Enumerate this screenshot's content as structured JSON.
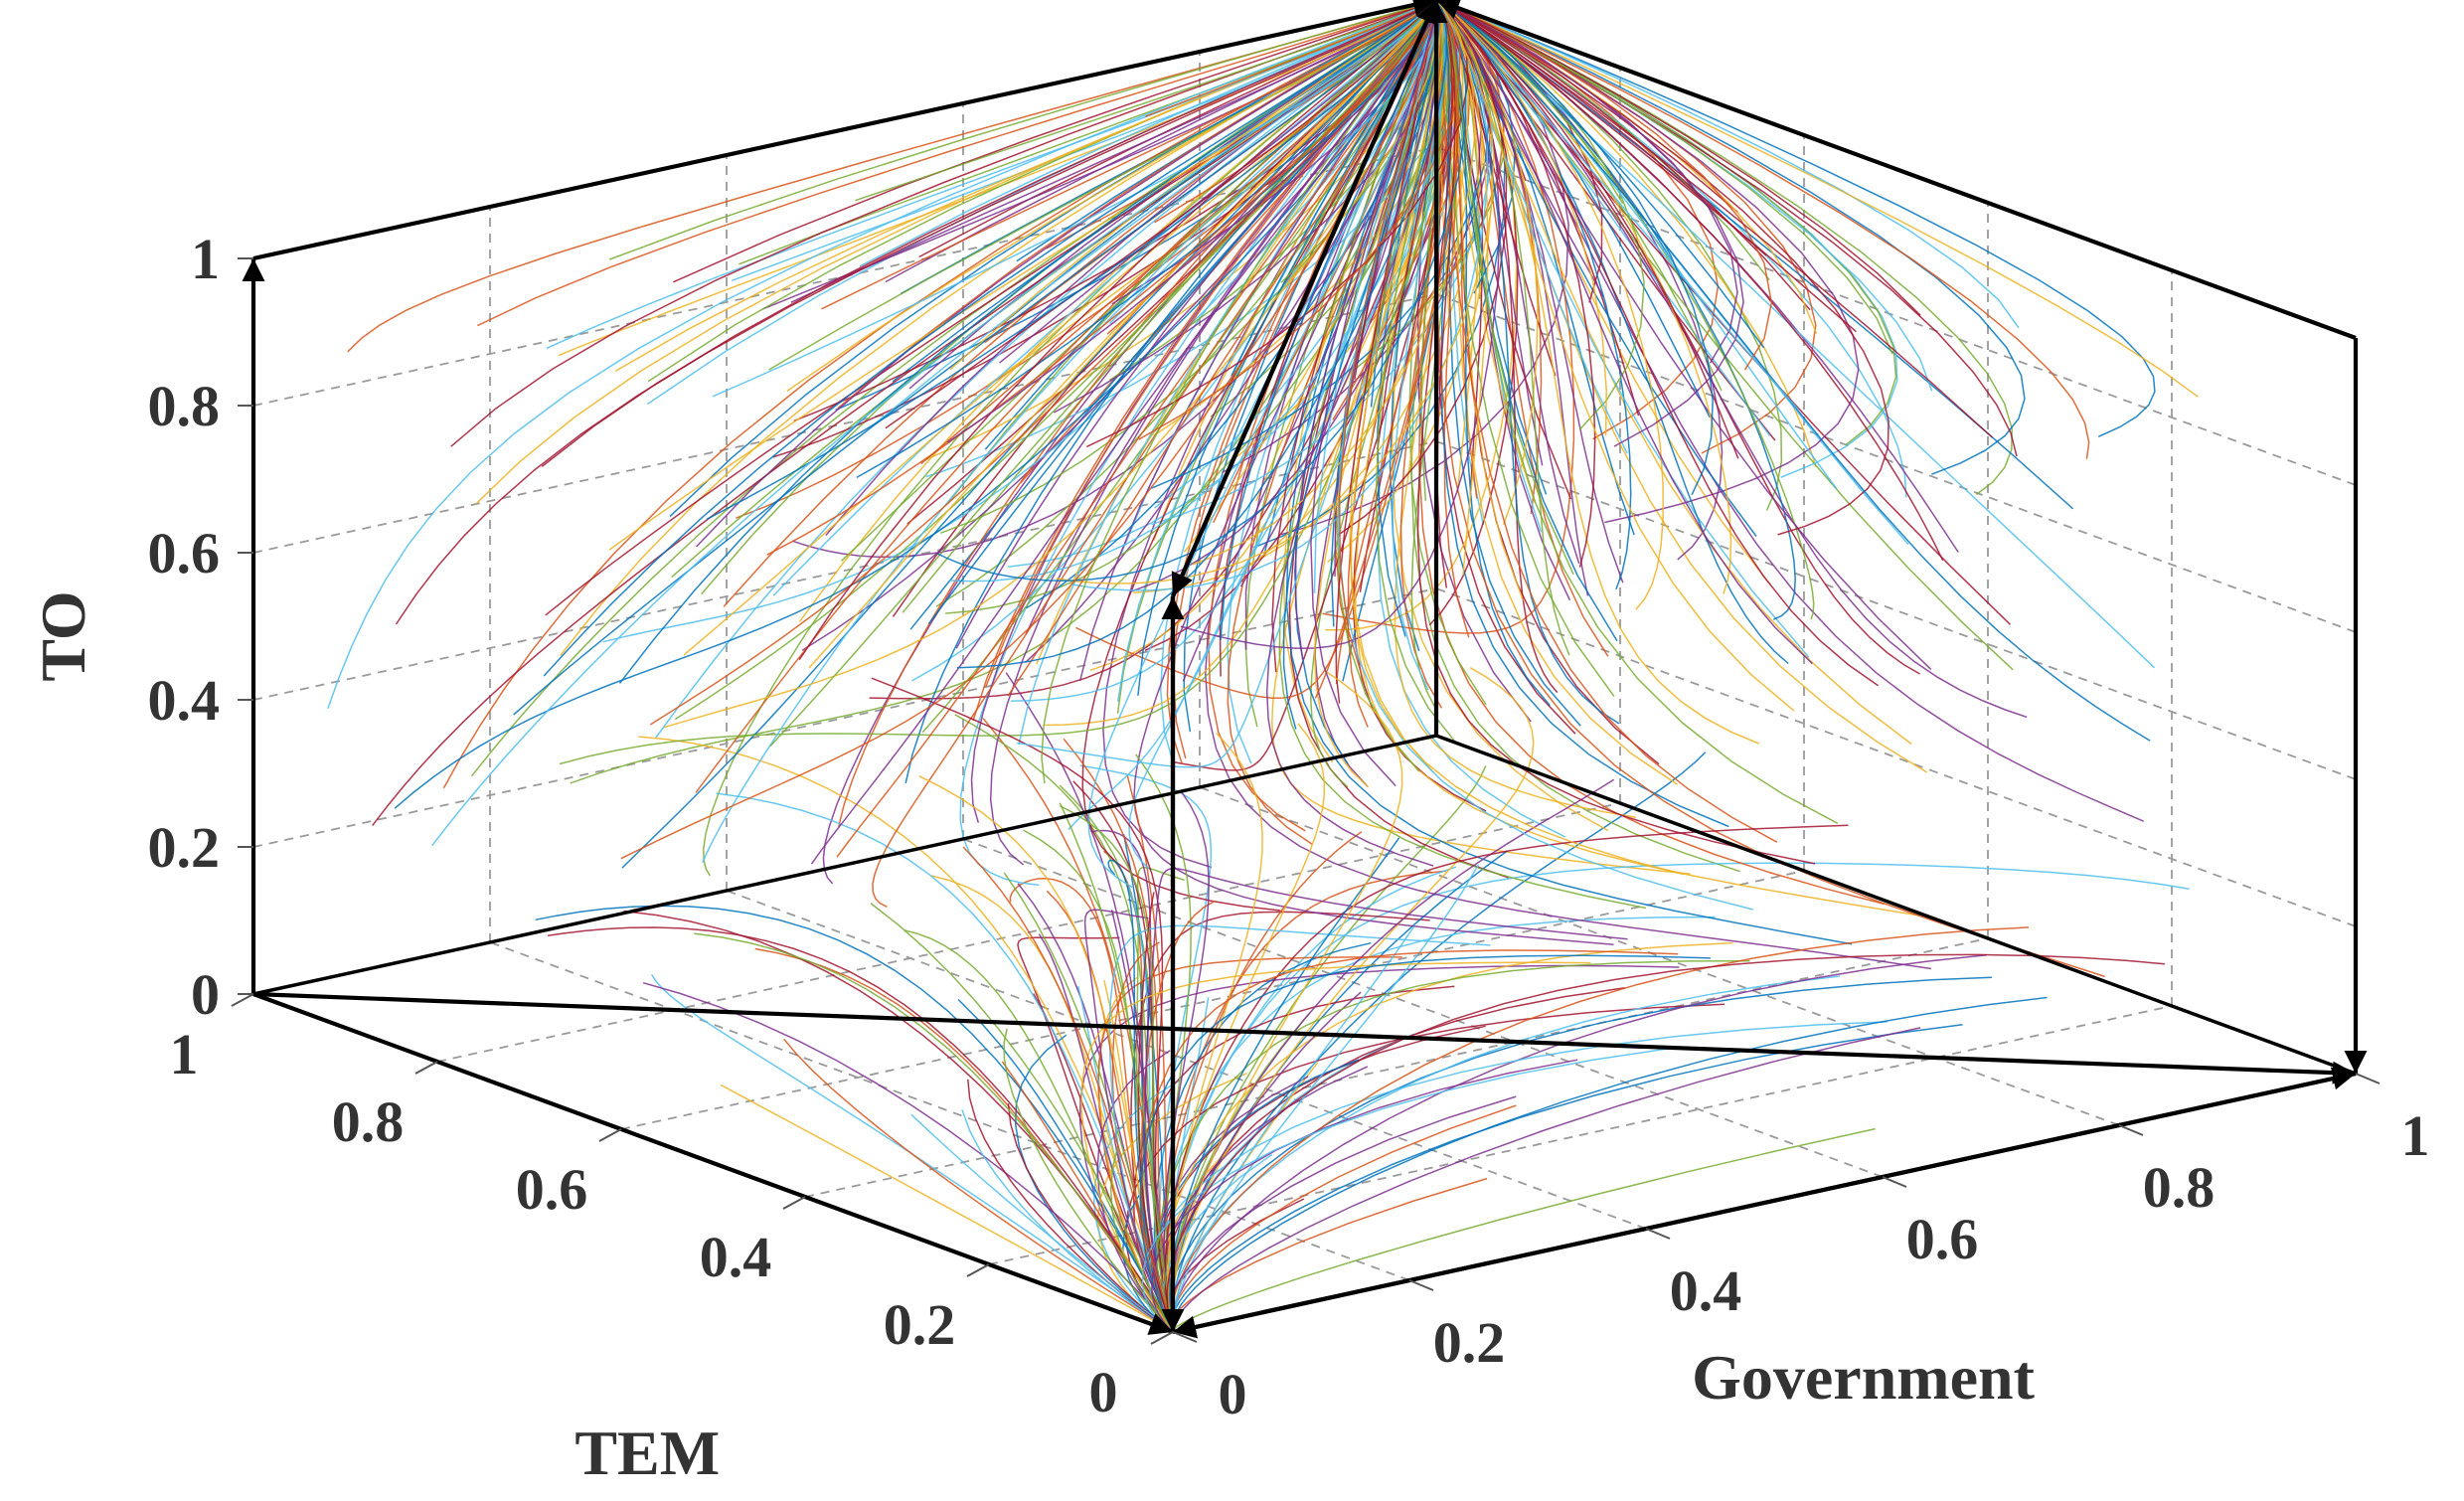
{
  "chart_data": {
    "type": "line",
    "subtype": "3d-phase-portrait",
    "title": "",
    "xlabel": "Government",
    "ylabel": "TEM",
    "zlabel": "TO",
    "xlim": [
      0,
      1
    ],
    "ylim": [
      0,
      1
    ],
    "zlim": [
      0,
      1
    ],
    "x_ticks": [
      "0",
      "0.2",
      "0.4",
      "0.6",
      "0.8",
      "1"
    ],
    "y_ticks": [
      "0",
      "0.2",
      "0.4",
      "0.6",
      "0.8",
      "1"
    ],
    "z_ticks": [
      "0",
      "0.2",
      "0.4",
      "0.6",
      "0.8",
      "1"
    ],
    "grid": true,
    "legend": "none",
    "trajectory_count": 500,
    "trajectory_colors": [
      "#0072BD",
      "#D95319",
      "#EDB120",
      "#7E2F8E",
      "#77AC30",
      "#4DBEEE",
      "#A2142F"
    ],
    "stable_points": [
      [
        1,
        1,
        1
      ]
    ],
    "pure_strategy_flows": [
      {
        "from": [
          0,
          0,
          0
        ],
        "to": [
          1,
          0,
          0
        ]
      },
      {
        "from": [
          1,
          0,
          0
        ],
        "to": [
          0,
          0,
          0
        ]
      },
      {
        "from": [
          0,
          1,
          0
        ],
        "to": [
          0,
          0,
          0
        ]
      },
      {
        "from": [
          0,
          0,
          1
        ],
        "to": [
          0,
          0,
          0
        ]
      },
      {
        "from": [
          0,
          0,
          0
        ],
        "to": [
          0,
          0,
          1
        ]
      },
      {
        "from": [
          0,
          1,
          0
        ],
        "to": [
          1,
          0,
          0
        ]
      },
      {
        "from": [
          1,
          0,
          1
        ],
        "to": [
          1,
          0,
          0
        ]
      },
      {
        "from": [
          0,
          1,
          0
        ],
        "to": [
          0,
          1,
          1
        ]
      },
      {
        "from": [
          0,
          1,
          1
        ],
        "to": [
          1,
          1,
          1
        ]
      },
      {
        "from": [
          1,
          0,
          1
        ],
        "to": [
          1,
          1,
          1
        ]
      },
      {
        "from": [
          0,
          0,
          1
        ],
        "to": [
          1,
          1,
          1
        ]
      },
      {
        "from": [
          1,
          1,
          1
        ],
        "to": [
          0,
          0,
          1
        ]
      },
      {
        "from": [
          1,
          1,
          0
        ],
        "to": [
          1,
          1,
          1
        ]
      }
    ]
  }
}
